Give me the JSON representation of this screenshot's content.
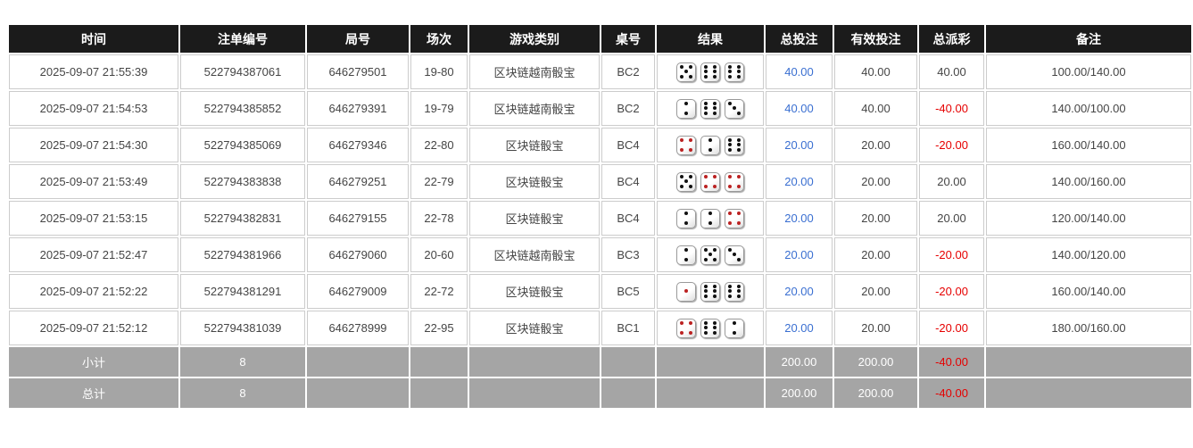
{
  "colors": {
    "header_bg": "#1b1b1b",
    "footer_bg": "#a5a5a5",
    "link_blue": "#3a6fd1",
    "negative_red": "#e60000",
    "pip_black": "#111111",
    "pip_red": "#bb2222"
  },
  "table": {
    "headers": [
      "时间",
      "注单编号",
      "局号",
      "场次",
      "游戏类别",
      "桌号",
      "结果",
      "总投注",
      "有效投注",
      "总派彩",
      "备注"
    ],
    "rows": [
      {
        "time": "2025-09-07 21:55:39",
        "bet_id": "522794387061",
        "round_id": "646279501",
        "session": "19-80",
        "game_type": "区块链越南骰宝",
        "table_no": "BC2",
        "dice": [
          5,
          6,
          6
        ],
        "total_bet": "40.00",
        "valid_bet": "40.00",
        "total_payout": "40.00",
        "remark": "100.00/140.00"
      },
      {
        "time": "2025-09-07 21:54:53",
        "bet_id": "522794385852",
        "round_id": "646279391",
        "session": "19-79",
        "game_type": "区块链越南骰宝",
        "table_no": "BC2",
        "dice": [
          2,
          6,
          3
        ],
        "total_bet": "40.00",
        "valid_bet": "40.00",
        "total_payout": "-40.00",
        "remark": "140.00/100.00"
      },
      {
        "time": "2025-09-07 21:54:30",
        "bet_id": "522794385069",
        "round_id": "646279346",
        "session": "22-80",
        "game_type": "区块链骰宝",
        "table_no": "BC4",
        "dice": [
          4,
          2,
          6
        ],
        "total_bet": "20.00",
        "valid_bet": "20.00",
        "total_payout": "-20.00",
        "remark": "160.00/140.00"
      },
      {
        "time": "2025-09-07 21:53:49",
        "bet_id": "522794383838",
        "round_id": "646279251",
        "session": "22-79",
        "game_type": "区块链骰宝",
        "table_no": "BC4",
        "dice": [
          5,
          4,
          4
        ],
        "total_bet": "20.00",
        "valid_bet": "20.00",
        "total_payout": "20.00",
        "remark": "140.00/160.00"
      },
      {
        "time": "2025-09-07 21:53:15",
        "bet_id": "522794382831",
        "round_id": "646279155",
        "session": "22-78",
        "game_type": "区块链骰宝",
        "table_no": "BC4",
        "dice": [
          2,
          2,
          4
        ],
        "total_bet": "20.00",
        "valid_bet": "20.00",
        "total_payout": "20.00",
        "remark": "120.00/140.00"
      },
      {
        "time": "2025-09-07 21:52:47",
        "bet_id": "522794381966",
        "round_id": "646279060",
        "session": "20-60",
        "game_type": "区块链越南骰宝",
        "table_no": "BC3",
        "dice": [
          2,
          5,
          3
        ],
        "total_bet": "20.00",
        "valid_bet": "20.00",
        "total_payout": "-20.00",
        "remark": "140.00/120.00"
      },
      {
        "time": "2025-09-07 21:52:22",
        "bet_id": "522794381291",
        "round_id": "646279009",
        "session": "22-72",
        "game_type": "区块链骰宝",
        "table_no": "BC5",
        "dice": [
          1,
          6,
          6
        ],
        "total_bet": "20.00",
        "valid_bet": "20.00",
        "total_payout": "-20.00",
        "remark": "160.00/140.00"
      },
      {
        "time": "2025-09-07 21:52:12",
        "bet_id": "522794381039",
        "round_id": "646278999",
        "session": "22-95",
        "game_type": "区块链骰宝",
        "table_no": "BC1",
        "dice": [
          4,
          6,
          2
        ],
        "total_bet": "20.00",
        "valid_bet": "20.00",
        "total_payout": "-20.00",
        "remark": "180.00/160.00"
      }
    ],
    "summary_rows": [
      {
        "label": "小计",
        "count": "8",
        "total_bet": "200.00",
        "valid_bet": "200.00",
        "total_payout": "-40.00"
      },
      {
        "label": "总计",
        "count": "8",
        "total_bet": "200.00",
        "valid_bet": "200.00",
        "total_payout": "-40.00"
      }
    ]
  }
}
